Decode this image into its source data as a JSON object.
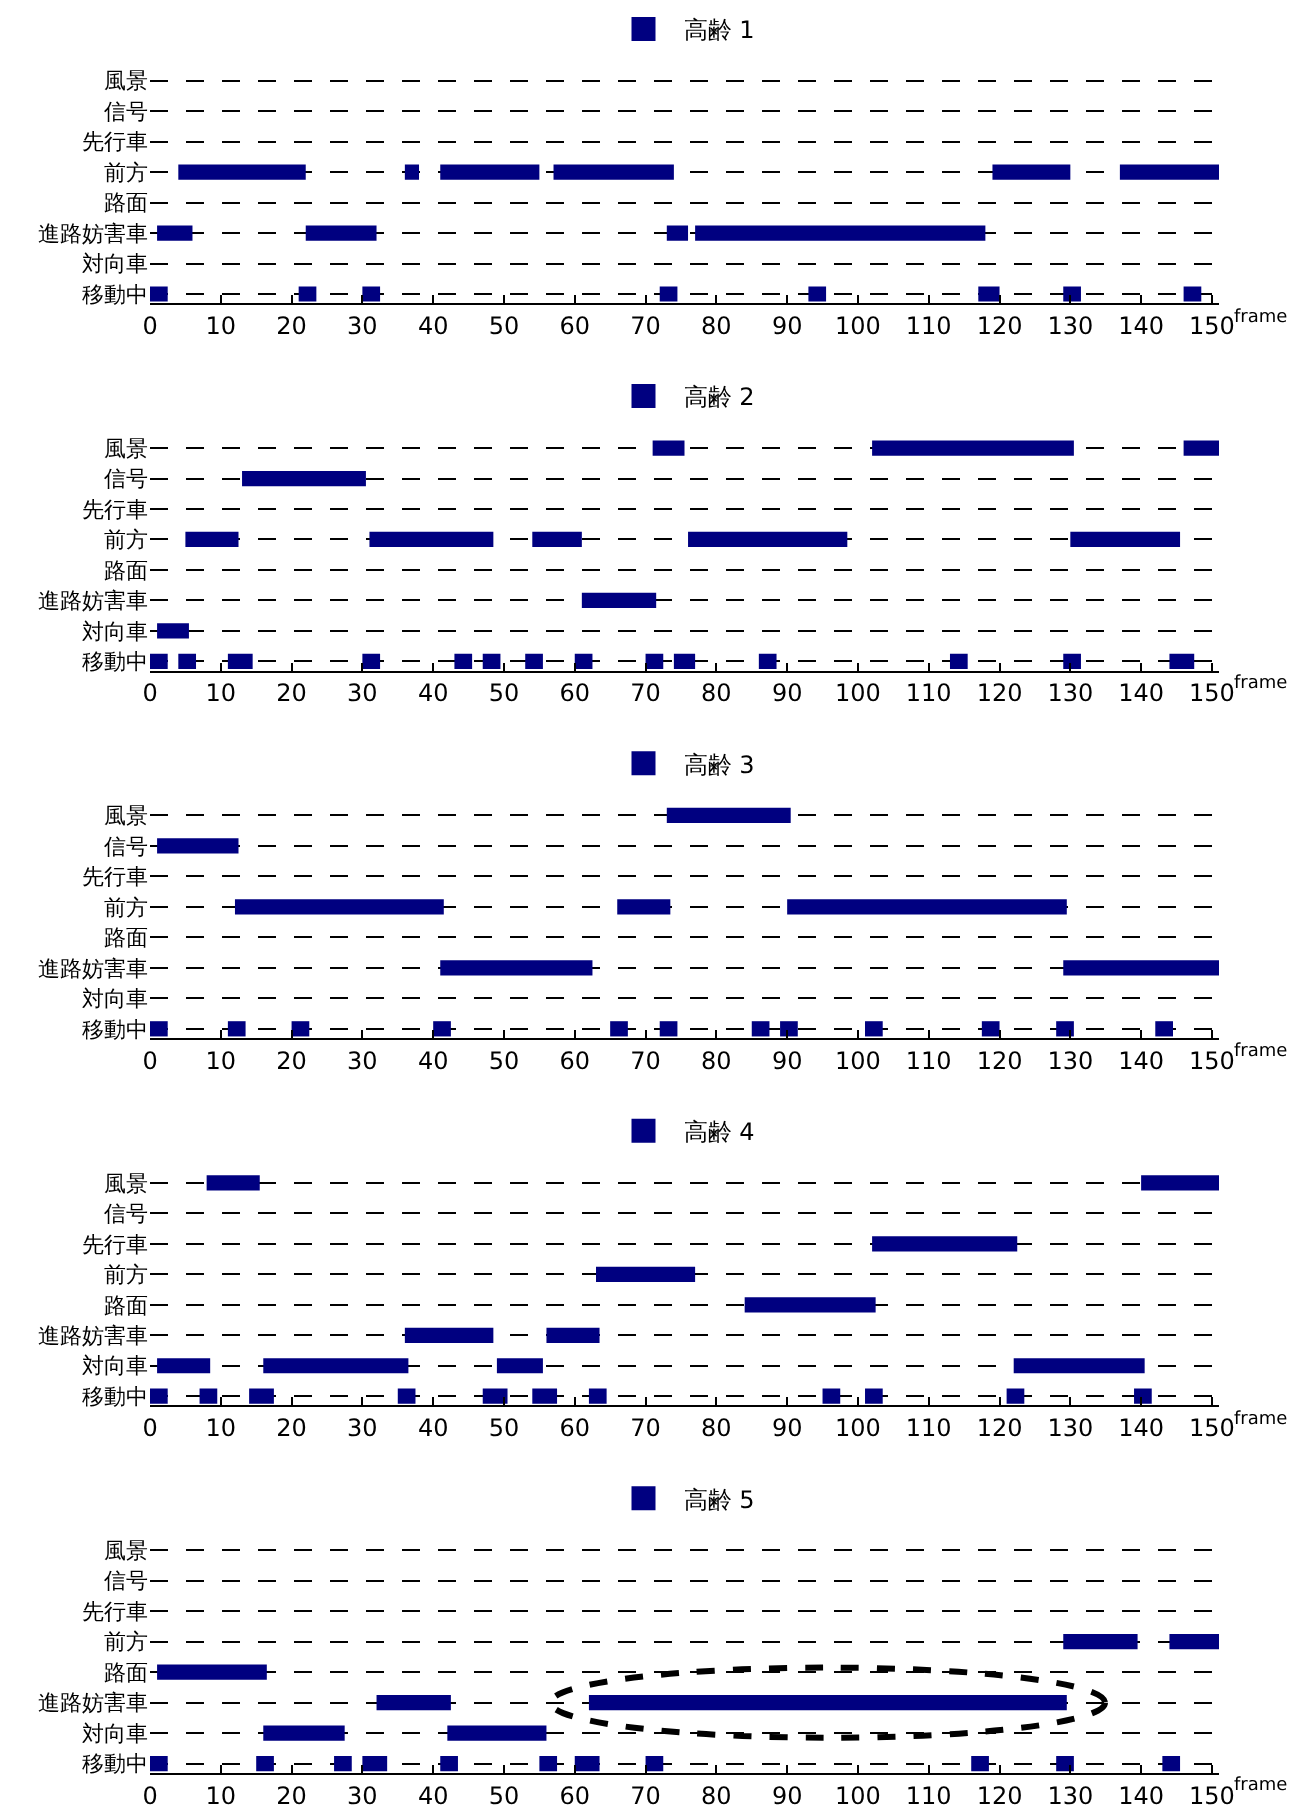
{
  "chart_data": [
    {
      "type": "bar",
      "orientation": "horizontal",
      "categories": [
        "風景",
        "信号",
        "先行車",
        "前方",
        "路面",
        "進路妨害車",
        "対向車",
        "移動中"
      ],
      "xlim": [
        0,
        151
      ],
      "xticks": [
        0,
        10,
        20,
        30,
        40,
        50,
        60,
        70,
        80,
        90,
        100,
        110,
        120,
        130,
        140,
        150
      ],
      "xlabel": "frame",
      "grid": "y",
      "legend": "top",
      "series": [
        {
          "name": "高齢 1",
          "color": "#000080",
          "base": [
            null,
            null,
            null,
            4,
            null,
            1,
            null,
            0
          ],
          "values": [
            null,
            null,
            null,
            18,
            null,
            5,
            null,
            2.5
          ]
        },
        {
          "color": "#000080",
          "base": [
            null,
            null,
            null,
            36,
            null,
            22,
            null,
            21
          ],
          "values": [
            null,
            null,
            null,
            2,
            null,
            10,
            null,
            2.5
          ]
        },
        {
          "color": "#000080",
          "base": [
            null,
            null,
            null,
            41,
            null,
            73,
            null,
            30
          ],
          "values": [
            null,
            null,
            null,
            14,
            null,
            3,
            null,
            2.5
          ]
        },
        {
          "color": "#000080",
          "base": [
            null,
            null,
            null,
            57,
            null,
            77,
            null,
            72
          ],
          "values": [
            null,
            null,
            null,
            17,
            null,
            41,
            null,
            2.5
          ]
        },
        {
          "color": "#000080",
          "base": [
            null,
            null,
            null,
            119,
            null,
            null,
            null,
            93
          ],
          "values": [
            null,
            null,
            null,
            11,
            null,
            null,
            null,
            2.5
          ]
        },
        {
          "color": "#000080",
          "base": [
            null,
            null,
            null,
            137,
            null,
            null,
            null,
            117
          ],
          "values": [
            null,
            null,
            null,
            14,
            null,
            null,
            null,
            3
          ]
        },
        {
          "color": "#000080",
          "base": [
            null,
            null,
            null,
            null,
            null,
            null,
            null,
            129
          ],
          "values": [
            null,
            null,
            null,
            null,
            null,
            null,
            null,
            2.5
          ]
        },
        {
          "color": "#000080",
          "base": [
            null,
            null,
            null,
            null,
            null,
            null,
            null,
            146
          ],
          "values": [
            null,
            null,
            null,
            null,
            null,
            null,
            null,
            2.5
          ]
        }
      ]
    },
    {
      "type": "bar",
      "orientation": "horizontal",
      "categories": [
        "風景",
        "信号",
        "先行車",
        "前方",
        "路面",
        "進路妨害車",
        "対向車",
        "移動中"
      ],
      "xlim": [
        0,
        151
      ],
      "xticks": [
        0,
        10,
        20,
        30,
        40,
        50,
        60,
        70,
        80,
        90,
        100,
        110,
        120,
        130,
        140,
        150
      ],
      "xlabel": "frame",
      "grid": "y",
      "legend": "top",
      "series": [
        {
          "name": "高齢 2",
          "color": "#000080",
          "base": [
            71,
            13,
            null,
            5,
            null,
            61,
            1,
            0
          ],
          "values": [
            4.5,
            17.5,
            null,
            7.5,
            null,
            10.5,
            4.5,
            2.5
          ]
        },
        {
          "color": "#000080",
          "base": [
            102,
            null,
            null,
            31,
            null,
            null,
            null,
            4
          ],
          "values": [
            28.5,
            null,
            null,
            17.5,
            null,
            null,
            null,
            2.5
          ]
        },
        {
          "color": "#000080",
          "base": [
            146,
            null,
            null,
            54,
            null,
            null,
            null,
            11
          ],
          "values": [
            5,
            null,
            null,
            7,
            null,
            null,
            null,
            3.5
          ]
        },
        {
          "color": "#000080",
          "base": [
            null,
            null,
            null,
            76,
            null,
            null,
            null,
            30
          ],
          "values": [
            null,
            null,
            null,
            22.5,
            null,
            null,
            null,
            2.5
          ]
        },
        {
          "color": "#000080",
          "base": [
            null,
            null,
            null,
            130,
            null,
            null,
            null,
            43
          ],
          "values": [
            null,
            null,
            null,
            15.5,
            null,
            null,
            null,
            2.5
          ]
        },
        {
          "color": "#000080",
          "base": [
            null,
            null,
            null,
            null,
            null,
            null,
            null,
            47
          ],
          "values": [
            null,
            null,
            null,
            null,
            null,
            null,
            null,
            2.5
          ]
        },
        {
          "color": "#000080",
          "base": [
            null,
            null,
            null,
            null,
            null,
            null,
            null,
            53
          ],
          "values": [
            null,
            null,
            null,
            null,
            null,
            null,
            null,
            2.5
          ]
        },
        {
          "color": "#000080",
          "base": [
            null,
            null,
            null,
            null,
            null,
            null,
            null,
            60
          ],
          "values": [
            null,
            null,
            null,
            null,
            null,
            null,
            null,
            2.5
          ]
        },
        {
          "color": "#000080",
          "base": [
            null,
            null,
            null,
            null,
            null,
            null,
            null,
            70
          ],
          "values": [
            null,
            null,
            null,
            null,
            null,
            null,
            null,
            2.5
          ]
        },
        {
          "color": "#000080",
          "base": [
            null,
            null,
            null,
            null,
            null,
            null,
            null,
            74
          ],
          "values": [
            null,
            null,
            null,
            null,
            null,
            null,
            null,
            3
          ]
        },
        {
          "color": "#000080",
          "base": [
            null,
            null,
            null,
            null,
            null,
            null,
            null,
            86
          ],
          "values": [
            null,
            null,
            null,
            null,
            null,
            null,
            null,
            2.5
          ]
        },
        {
          "color": "#000080",
          "base": [
            null,
            null,
            null,
            null,
            null,
            null,
            null,
            113
          ],
          "values": [
            null,
            null,
            null,
            null,
            null,
            null,
            null,
            2.5
          ]
        },
        {
          "color": "#000080",
          "base": [
            null,
            null,
            null,
            null,
            null,
            null,
            null,
            129
          ],
          "values": [
            null,
            null,
            null,
            null,
            null,
            null,
            null,
            2.5
          ]
        },
        {
          "color": "#000080",
          "base": [
            null,
            null,
            null,
            null,
            null,
            null,
            null,
            144
          ],
          "values": [
            null,
            null,
            null,
            null,
            null,
            null,
            null,
            3.5
          ]
        }
      ]
    },
    {
      "type": "bar",
      "orientation": "horizontal",
      "categories": [
        "風景",
        "信号",
        "先行車",
        "前方",
        "路面",
        "進路妨害車",
        "対向車",
        "移動中"
      ],
      "xlim": [
        0,
        151
      ],
      "xticks": [
        0,
        10,
        20,
        30,
        40,
        50,
        60,
        70,
        80,
        90,
        100,
        110,
        120,
        130,
        140,
        150
      ],
      "xlabel": "frame",
      "grid": "y",
      "legend": "top",
      "series": [
        {
          "name": "高齢 3",
          "color": "#000080",
          "base": [
            73,
            1,
            null,
            12,
            null,
            41,
            null,
            0
          ],
          "values": [
            17.5,
            11.5,
            null,
            29.5,
            null,
            21.5,
            null,
            2.5
          ]
        },
        {
          "color": "#000080",
          "base": [
            null,
            null,
            null,
            66,
            null,
            129,
            null,
            11
          ],
          "values": [
            null,
            null,
            null,
            7.5,
            null,
            22,
            null,
            2.5
          ]
        },
        {
          "color": "#000080",
          "base": [
            null,
            null,
            null,
            90,
            null,
            null,
            null,
            20
          ],
          "values": [
            null,
            null,
            null,
            39.5,
            null,
            null,
            null,
            2.5
          ]
        },
        {
          "color": "#000080",
          "base": [
            null,
            null,
            null,
            null,
            null,
            null,
            null,
            40
          ],
          "values": [
            null,
            null,
            null,
            null,
            null,
            null,
            null,
            2.5
          ]
        },
        {
          "color": "#000080",
          "base": [
            null,
            null,
            null,
            null,
            null,
            null,
            null,
            65
          ],
          "values": [
            null,
            null,
            null,
            null,
            null,
            null,
            null,
            2.5
          ]
        },
        {
          "color": "#000080",
          "base": [
            null,
            null,
            null,
            null,
            null,
            null,
            null,
            72
          ],
          "values": [
            null,
            null,
            null,
            null,
            null,
            null,
            null,
            2.5
          ]
        },
        {
          "color": "#000080",
          "base": [
            null,
            null,
            null,
            null,
            null,
            null,
            null,
            85
          ],
          "values": [
            null,
            null,
            null,
            null,
            null,
            null,
            null,
            2.5
          ]
        },
        {
          "color": "#000080",
          "base": [
            null,
            null,
            null,
            null,
            null,
            null,
            null,
            89
          ],
          "values": [
            null,
            null,
            null,
            null,
            null,
            null,
            null,
            2.5
          ]
        },
        {
          "color": "#000080",
          "base": [
            null,
            null,
            null,
            null,
            null,
            null,
            null,
            101
          ],
          "values": [
            null,
            null,
            null,
            null,
            null,
            null,
            null,
            2.5
          ]
        },
        {
          "color": "#000080",
          "base": [
            null,
            null,
            null,
            null,
            null,
            null,
            null,
            117.5
          ],
          "values": [
            null,
            null,
            null,
            null,
            null,
            null,
            null,
            2.5
          ]
        },
        {
          "color": "#000080",
          "base": [
            null,
            null,
            null,
            null,
            null,
            null,
            null,
            128
          ],
          "values": [
            null,
            null,
            null,
            null,
            null,
            null,
            null,
            2.5
          ]
        },
        {
          "color": "#000080",
          "base": [
            null,
            null,
            null,
            null,
            null,
            null,
            null,
            142
          ],
          "values": [
            null,
            null,
            null,
            null,
            null,
            null,
            null,
            2.5
          ]
        }
      ]
    },
    {
      "type": "bar",
      "orientation": "horizontal",
      "categories": [
        "風景",
        "信号",
        "先行車",
        "前方",
        "路面",
        "進路妨害車",
        "対向車",
        "移動中"
      ],
      "xlim": [
        0,
        151
      ],
      "xticks": [
        0,
        10,
        20,
        30,
        40,
        50,
        60,
        70,
        80,
        90,
        100,
        110,
        120,
        130,
        140,
        150
      ],
      "xlabel": "frame",
      "grid": "y",
      "legend": "top",
      "series": [
        {
          "name": "高齢 4",
          "color": "#000080",
          "base": [
            8,
            null,
            102,
            63,
            84,
            36,
            1,
            0
          ],
          "values": [
            7.5,
            null,
            20.5,
            14,
            18.5,
            12.5,
            7.5,
            2.5
          ]
        },
        {
          "color": "#000080",
          "base": [
            140,
            null,
            null,
            null,
            null,
            56,
            16,
            7
          ],
          "values": [
            11,
            null,
            null,
            null,
            null,
            7.5,
            20.5,
            2.5
          ]
        },
        {
          "color": "#000080",
          "base": [
            null,
            null,
            null,
            null,
            null,
            null,
            49,
            14
          ],
          "values": [
            null,
            null,
            null,
            null,
            null,
            null,
            6.5,
            3.5
          ]
        },
        {
          "color": "#000080",
          "base": [
            null,
            null,
            null,
            null,
            null,
            null,
            122,
            35
          ],
          "values": [
            null,
            null,
            null,
            null,
            null,
            null,
            18.5,
            2.5
          ]
        },
        {
          "color": "#000080",
          "base": [
            null,
            null,
            null,
            null,
            null,
            null,
            null,
            47
          ],
          "values": [
            null,
            null,
            null,
            null,
            null,
            null,
            null,
            3.5
          ]
        },
        {
          "color": "#000080",
          "base": [
            null,
            null,
            null,
            null,
            null,
            null,
            null,
            54
          ],
          "values": [
            null,
            null,
            null,
            null,
            null,
            null,
            null,
            3.5
          ]
        },
        {
          "color": "#000080",
          "base": [
            null,
            null,
            null,
            null,
            null,
            null,
            null,
            62
          ],
          "values": [
            null,
            null,
            null,
            null,
            null,
            null,
            null,
            2.5
          ]
        },
        {
          "color": "#000080",
          "base": [
            null,
            null,
            null,
            null,
            null,
            null,
            null,
            95
          ],
          "values": [
            null,
            null,
            null,
            null,
            null,
            null,
            null,
            2.5
          ]
        },
        {
          "color": "#000080",
          "base": [
            null,
            null,
            null,
            null,
            null,
            null,
            null,
            101
          ],
          "values": [
            null,
            null,
            null,
            null,
            null,
            null,
            null,
            2.5
          ]
        },
        {
          "color": "#000080",
          "base": [
            null,
            null,
            null,
            null,
            null,
            null,
            null,
            121
          ],
          "values": [
            null,
            null,
            null,
            null,
            null,
            null,
            null,
            2.5
          ]
        },
        {
          "color": "#000080",
          "base": [
            null,
            null,
            null,
            null,
            null,
            null,
            null,
            139
          ],
          "values": [
            null,
            null,
            null,
            null,
            null,
            null,
            null,
            2.5
          ]
        }
      ]
    },
    {
      "type": "bar",
      "orientation": "horizontal",
      "categories": [
        "風景",
        "信号",
        "先行車",
        "前方",
        "路面",
        "進路妨害車",
        "対向車",
        "移動中"
      ],
      "xlim": [
        0,
        151
      ],
      "xticks": [
        0,
        10,
        20,
        30,
        40,
        50,
        60,
        70,
        80,
        90,
        100,
        110,
        120,
        130,
        140,
        150
      ],
      "xlabel": "frame",
      "grid": "y",
      "legend": "top",
      "series": [
        {
          "name": "高齢 5",
          "color": "#000080",
          "base": [
            null,
            null,
            null,
            129,
            1,
            32,
            16,
            0
          ],
          "values": [
            null,
            null,
            null,
            10.5,
            15.5,
            10.5,
            11.5,
            2.5
          ]
        },
        {
          "color": "#000080",
          "base": [
            null,
            null,
            null,
            144,
            null,
            62,
            42,
            15
          ],
          "values": [
            null,
            null,
            null,
            7,
            null,
            67.5,
            14,
            2.5
          ]
        },
        {
          "color": "#000080",
          "base": [
            null,
            null,
            null,
            null,
            null,
            null,
            null,
            26
          ],
          "values": [
            null,
            null,
            null,
            null,
            null,
            null,
            null,
            2.5
          ]
        },
        {
          "color": "#000080",
          "base": [
            null,
            null,
            null,
            null,
            null,
            null,
            null,
            30
          ],
          "values": [
            null,
            null,
            null,
            null,
            null,
            null,
            null,
            3.5
          ]
        },
        {
          "color": "#000080",
          "base": [
            null,
            null,
            null,
            null,
            null,
            null,
            null,
            41
          ],
          "values": [
            null,
            null,
            null,
            null,
            null,
            null,
            null,
            2.5
          ]
        },
        {
          "color": "#000080",
          "base": [
            null,
            null,
            null,
            null,
            null,
            null,
            null,
            55
          ],
          "values": [
            null,
            null,
            null,
            null,
            null,
            null,
            null,
            2.5
          ]
        },
        {
          "color": "#000080",
          "base": [
            null,
            null,
            null,
            null,
            null,
            null,
            null,
            60
          ],
          "values": [
            null,
            null,
            null,
            null,
            null,
            null,
            null,
            3.5
          ]
        },
        {
          "color": "#000080",
          "base": [
            null,
            null,
            null,
            null,
            null,
            null,
            null,
            70
          ],
          "values": [
            null,
            null,
            null,
            null,
            null,
            null,
            null,
            2.5
          ]
        },
        {
          "color": "#000080",
          "base": [
            null,
            null,
            null,
            null,
            null,
            null,
            null,
            116
          ],
          "values": [
            null,
            null,
            null,
            null,
            null,
            null,
            null,
            2.5
          ]
        },
        {
          "color": "#000080",
          "base": [
            null,
            null,
            null,
            null,
            null,
            null,
            null,
            128
          ],
          "values": [
            null,
            null,
            null,
            null,
            null,
            null,
            null,
            2.5
          ]
        },
        {
          "color": "#000080",
          "base": [
            null,
            null,
            null,
            null,
            null,
            null,
            null,
            143
          ],
          "values": [
            null,
            null,
            null,
            null,
            null,
            null,
            null,
            2.5
          ]
        }
      ]
    }
  ]
}
